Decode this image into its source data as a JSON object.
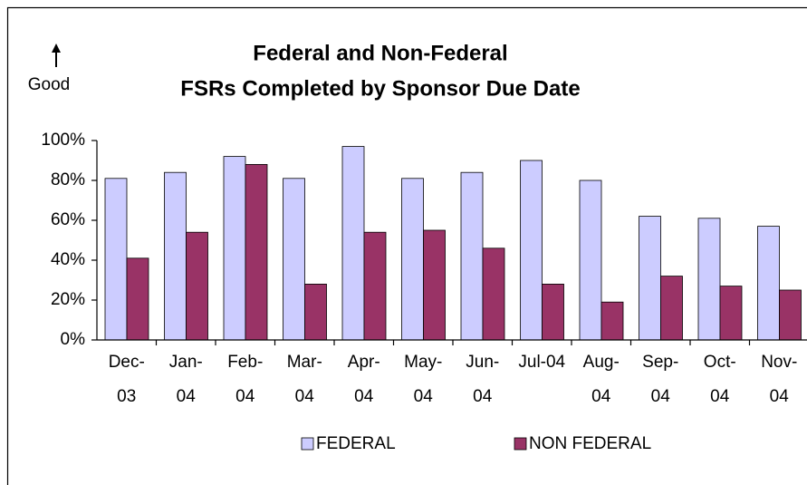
{
  "chart_data": {
    "type": "bar",
    "title": [
      "Federal and Non-Federal",
      "FSRs Completed by Sponsor Due Date"
    ],
    "annotation": "Good",
    "categories": [
      [
        "Dec-",
        "03"
      ],
      [
        "Jan-",
        "04"
      ],
      [
        "Feb-",
        "04"
      ],
      [
        "Mar-",
        "04"
      ],
      [
        "Apr-",
        "04"
      ],
      [
        "May-",
        "04"
      ],
      [
        "Jun-",
        "04"
      ],
      [
        "Jul-04"
      ],
      [
        "Aug-",
        "04"
      ],
      [
        "Sep-",
        "04"
      ],
      [
        "Oct-",
        "04"
      ],
      [
        "Nov-",
        "04"
      ]
    ],
    "series": [
      {
        "name": "FEDERAL",
        "color": "#ccccff",
        "values": [
          81,
          84,
          92,
          81,
          97,
          81,
          84,
          90,
          80,
          62,
          61,
          57
        ]
      },
      {
        "name": "NON FEDERAL",
        "color": "#993366",
        "values": [
          41,
          54,
          88,
          28,
          54,
          55,
          46,
          28,
          19,
          32,
          27,
          25
        ]
      }
    ],
    "ylim": [
      0,
      100
    ],
    "yticks": [
      {
        "value": 0,
        "label": "0%"
      },
      {
        "value": 20,
        "label": "20%"
      },
      {
        "value": 40,
        "label": "40%"
      },
      {
        "value": 60,
        "label": "60%"
      },
      {
        "value": 80,
        "label": "80%"
      },
      {
        "value": 100,
        "label": "100%"
      }
    ],
    "grid": false,
    "legend": "bottom"
  }
}
